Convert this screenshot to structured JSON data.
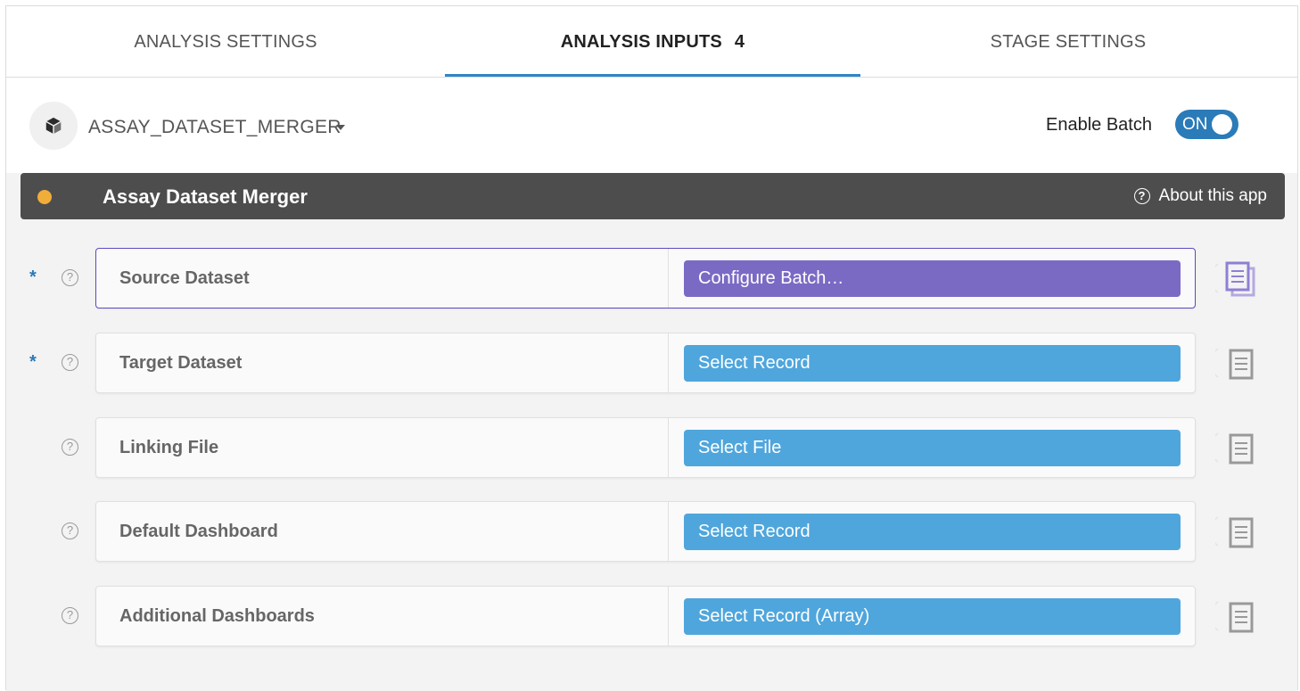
{
  "tabs": [
    {
      "label": "ANALYSIS SETTINGS"
    },
    {
      "label": "ANALYSIS INPUTS",
      "count": "4"
    },
    {
      "label": "STAGE SETTINGS"
    }
  ],
  "header": {
    "app_name": "ASSAY_DATASET_MERGER",
    "enable_batch_label": "Enable Batch",
    "toggle_state": "ON"
  },
  "app_bar": {
    "title": "Assay Dataset Merger",
    "about_label": "About this app",
    "status_color": "#f0ad3a"
  },
  "inputs": [
    {
      "label": "Source Dataset",
      "required": "*",
      "help": "?",
      "button": "Configure Batch…",
      "style": "purple"
    },
    {
      "label": "Target Dataset",
      "required": "*",
      "help": "?",
      "button": "Select Record",
      "style": "blue"
    },
    {
      "label": "Linking File",
      "required": "",
      "help": "?",
      "button": "Select File",
      "style": "blue"
    },
    {
      "label": "Default Dashboard",
      "required": "",
      "help": "?",
      "button": "Select Record",
      "style": "blue"
    },
    {
      "label": "Additional Dashboards",
      "required": "",
      "help": "?",
      "button": "Select Record (Array)",
      "style": "blue"
    }
  ],
  "colors": {
    "accent": "#2f86c9",
    "batch_purple": "#7b6ac4",
    "select_blue": "#4fa6dc"
  }
}
